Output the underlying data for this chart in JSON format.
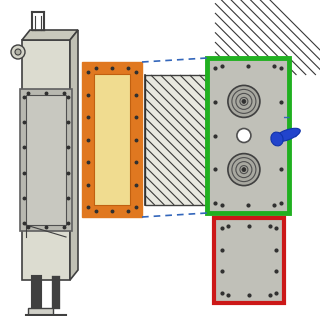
{
  "bg_color": "#ffffff",
  "fig_w": 3.2,
  "fig_h": 3.16,
  "dpi": 100,
  "components": {
    "boiler": {
      "body_color": "#e8e8e0",
      "line_color": "#404040",
      "lw": 1.2
    },
    "gray_frame": {
      "color": "#a0a0a0",
      "lw": 2.0
    },
    "orange_frame": {
      "outer_color": "#E07820",
      "inner_color": "#f0d890",
      "lw": 3.0
    },
    "coil": {
      "color": "#282828",
      "hatch_color": "#383838",
      "lw": 1.0
    },
    "green_plate": {
      "face_color": "#c0c0b8",
      "edge_color": "#20b020",
      "lw": 3.5
    },
    "red_plate": {
      "face_color": "#c0c0b8",
      "edge_color": "#cc1818",
      "lw": 3.0
    },
    "screw": {
      "color": "#2244cc"
    },
    "dash_color": "#3366bb",
    "dot_color": "#303030"
  }
}
